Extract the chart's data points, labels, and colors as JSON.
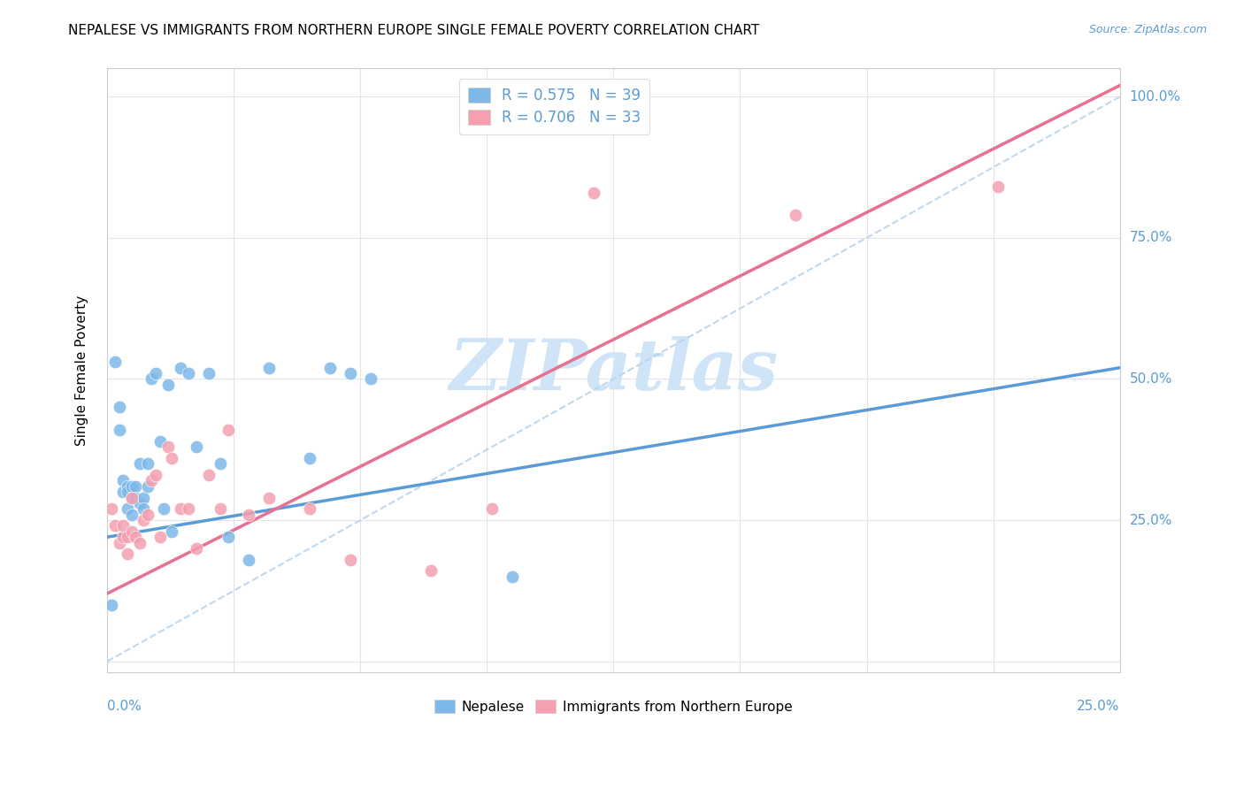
{
  "title": "NEPALESE VS IMMIGRANTS FROM NORTHERN EUROPE SINGLE FEMALE POVERTY CORRELATION CHART",
  "source": "Source: ZipAtlas.com",
  "ylabel": "Single Female Poverty",
  "xlim": [
    0,
    0.25
  ],
  "ylim": [
    -0.02,
    1.05
  ],
  "r_nepalese": 0.575,
  "n_nepalese": 39,
  "r_northern": 0.706,
  "n_northern": 33,
  "nepalese_color": "#7db8e8",
  "northern_color": "#f4a0b0",
  "nepalese_line_color": "#5b9bd5",
  "northern_line_color": "#e87090",
  "ref_line_color": "#b8d4ee",
  "watermark_color": "#d0e4f7",
  "nepalese_x": [
    0.001,
    0.002,
    0.003,
    0.003,
    0.004,
    0.004,
    0.005,
    0.005,
    0.005,
    0.006,
    0.006,
    0.006,
    0.007,
    0.007,
    0.008,
    0.008,
    0.009,
    0.009,
    0.01,
    0.01,
    0.011,
    0.012,
    0.013,
    0.014,
    0.015,
    0.016,
    0.018,
    0.02,
    0.022,
    0.025,
    0.028,
    0.03,
    0.035,
    0.04,
    0.05,
    0.055,
    0.06,
    0.065,
    0.1
  ],
  "nepalese_y": [
    0.1,
    0.53,
    0.45,
    0.41,
    0.32,
    0.3,
    0.31,
    0.3,
    0.27,
    0.31,
    0.29,
    0.26,
    0.31,
    0.29,
    0.35,
    0.28,
    0.29,
    0.27,
    0.31,
    0.35,
    0.5,
    0.51,
    0.39,
    0.27,
    0.49,
    0.23,
    0.52,
    0.51,
    0.38,
    0.51,
    0.35,
    0.22,
    0.18,
    0.52,
    0.36,
    0.52,
    0.51,
    0.5,
    0.15
  ],
  "northern_x": [
    0.001,
    0.002,
    0.003,
    0.004,
    0.004,
    0.005,
    0.005,
    0.006,
    0.006,
    0.007,
    0.008,
    0.009,
    0.01,
    0.011,
    0.012,
    0.013,
    0.015,
    0.016,
    0.018,
    0.02,
    0.022,
    0.025,
    0.028,
    0.03,
    0.035,
    0.04,
    0.05,
    0.06,
    0.08,
    0.095,
    0.12,
    0.17,
    0.22
  ],
  "northern_y": [
    0.27,
    0.24,
    0.21,
    0.22,
    0.24,
    0.19,
    0.22,
    0.23,
    0.29,
    0.22,
    0.21,
    0.25,
    0.26,
    0.32,
    0.33,
    0.22,
    0.38,
    0.36,
    0.27,
    0.27,
    0.2,
    0.33,
    0.27,
    0.41,
    0.26,
    0.29,
    0.27,
    0.18,
    0.16,
    0.27,
    0.83,
    0.79,
    0.84
  ],
  "nepalese_trend_x": [
    0.0,
    0.25
  ],
  "nepalese_trend_y": [
    0.22,
    0.52
  ],
  "northern_trend_x": [
    0.0,
    0.25
  ],
  "northern_trend_y": [
    0.12,
    1.02
  ],
  "ref_trend_x": [
    0.0,
    0.25
  ],
  "ref_trend_y": [
    0.0,
    1.0
  ]
}
